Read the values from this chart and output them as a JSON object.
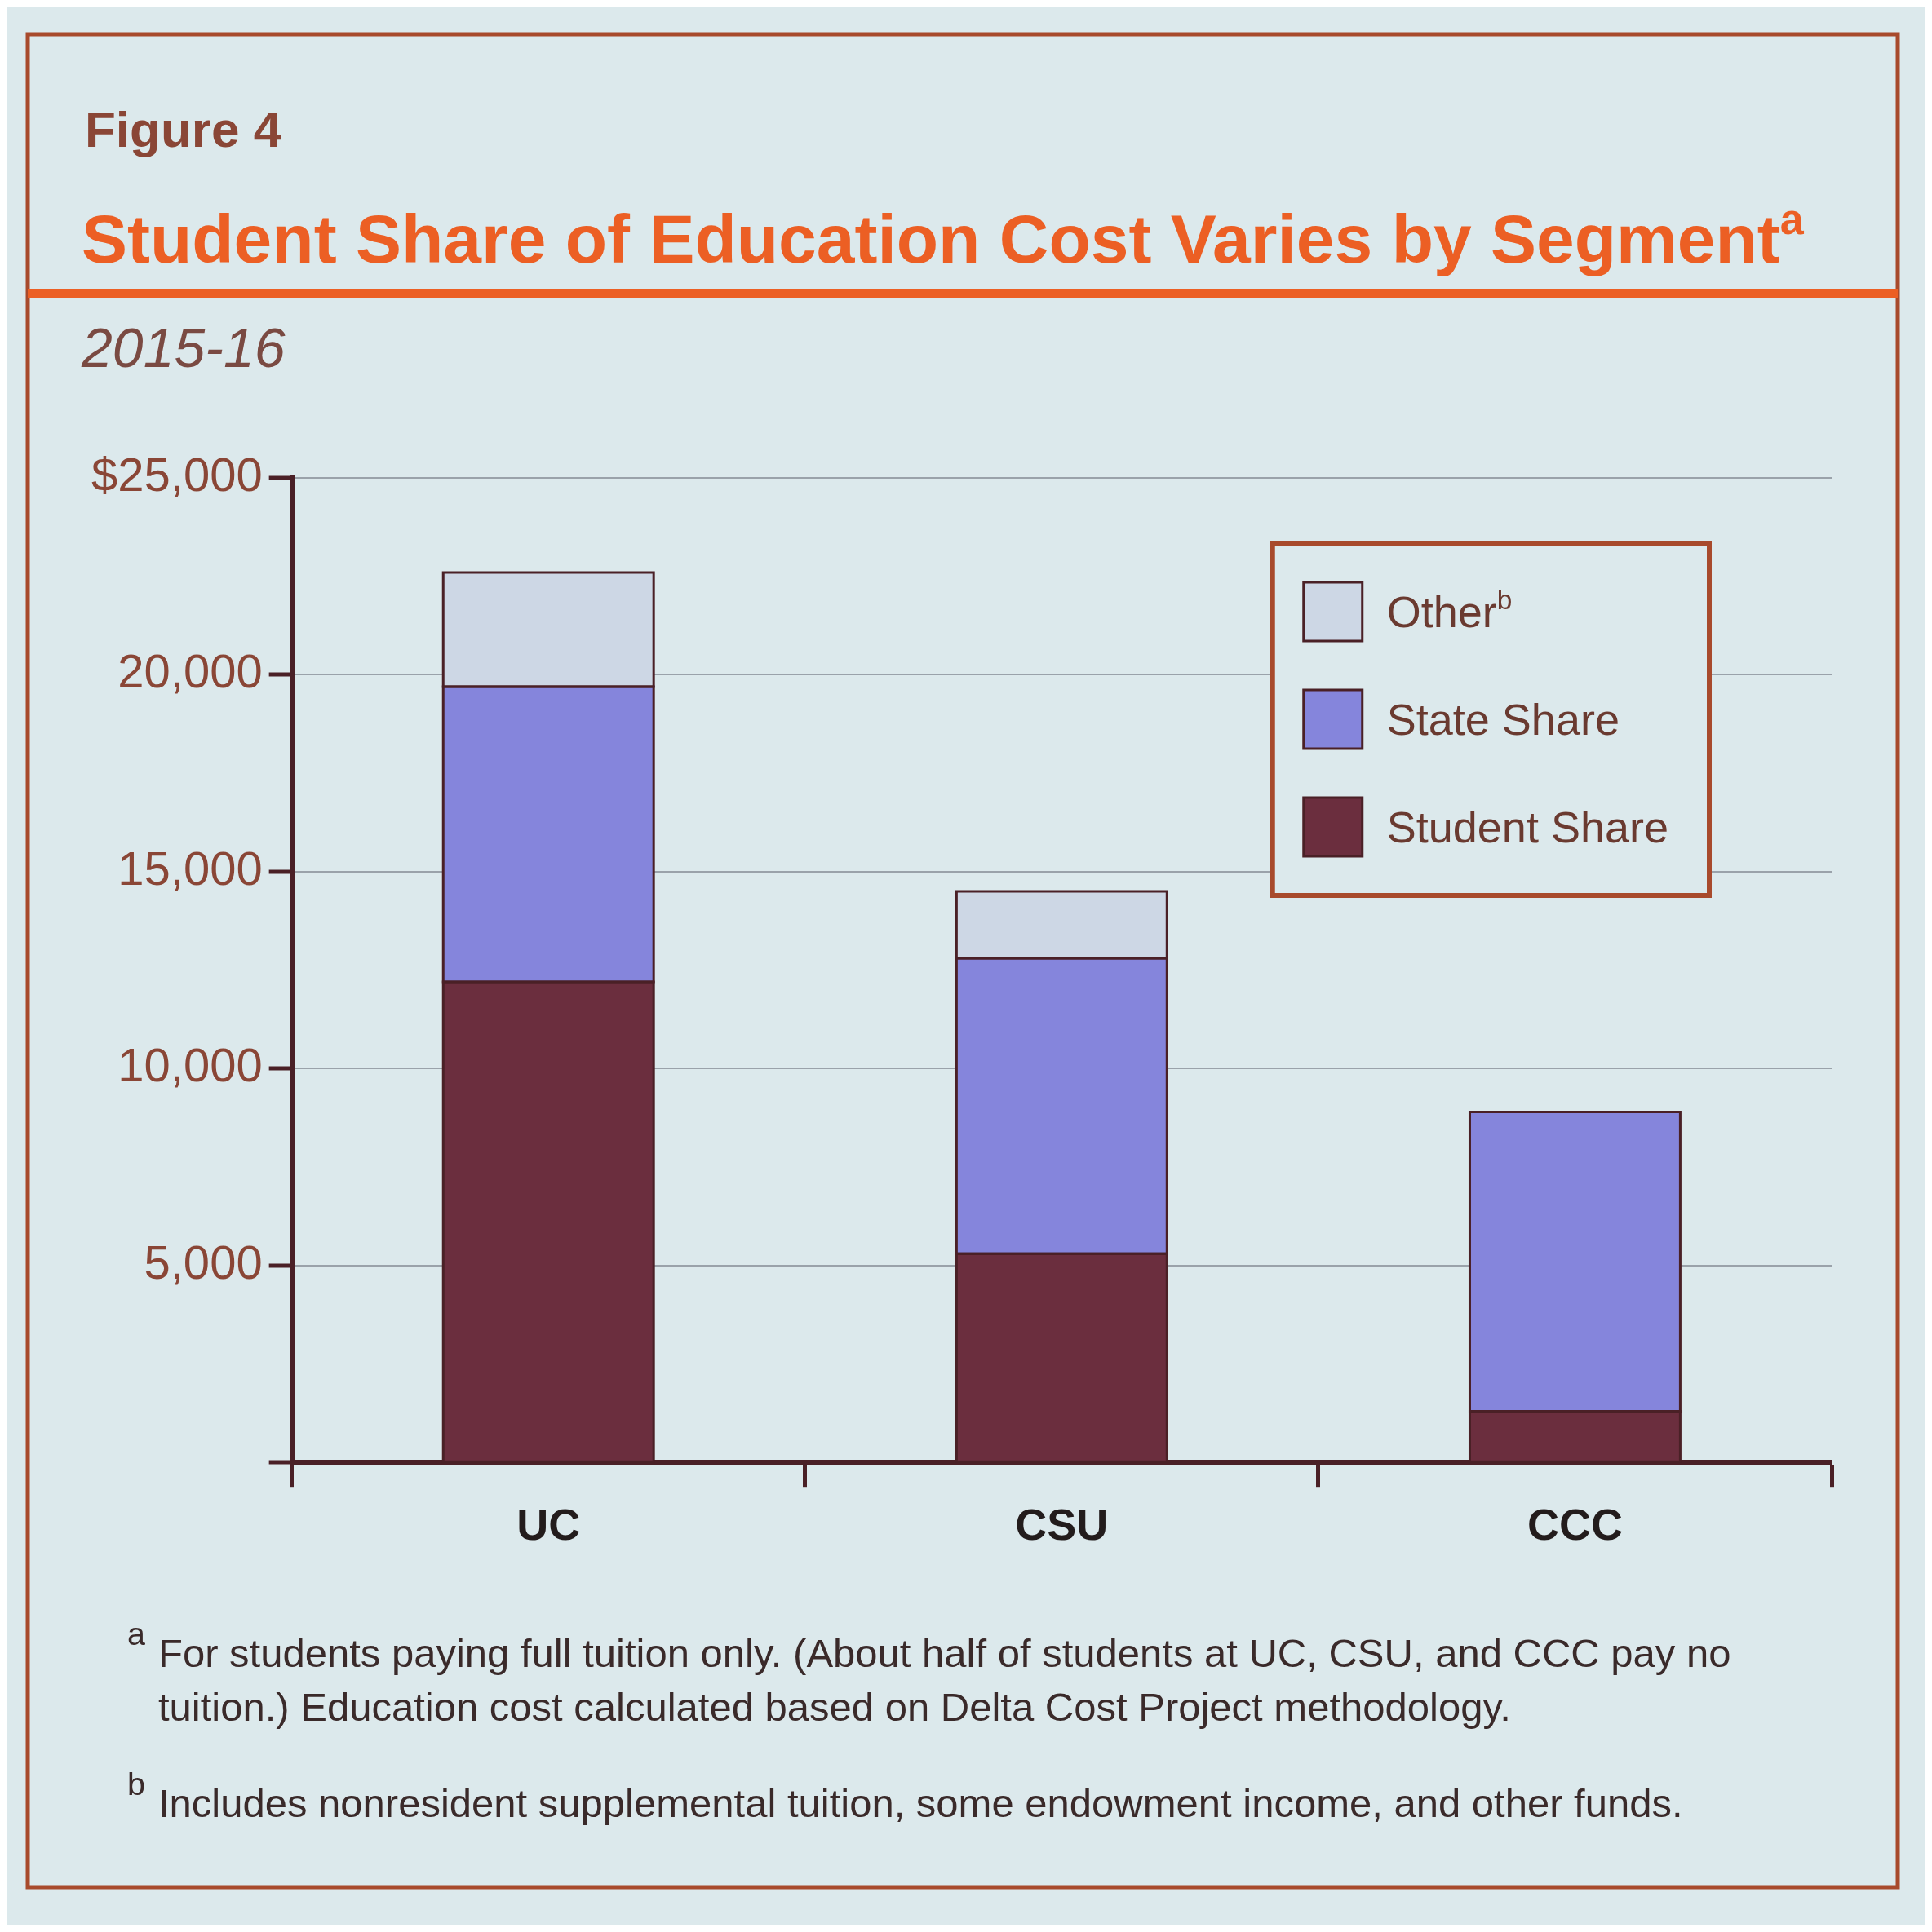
{
  "chart_data": {
    "type": "bar",
    "title": "Student Share of Education Cost Varies by Segment$^{a}$",
    "subtitle": "2015-16",
    "annotations": [
      "Figure 4",
      "$^{a}$ For students paying full tuition only. (About half of students at UC, CSU, and CCC pay no tuition.) Education cost calculated based on Delta Cost Project methodology.",
      "$^{b}$ Includes nonresident supplemental tuition, some endowment income, and other funds."
    ],
    "categories": [
      "UC",
      "CSU",
      "CCC"
    ],
    "series": [
      {
        "name": "Student Share",
        "color": "#6b2e3e",
        "values": [
          12200,
          5300,
          1300
        ]
      },
      {
        "name": "State Share",
        "color": "#8585dc",
        "values": [
          7500,
          7500,
          7600
        ]
      },
      {
        "name": "Other$^{b}$",
        "color": "#cdd7e5",
        "values": [
          2900,
          1700,
          0
        ]
      }
    ],
    "stacked": true,
    "ylim": [
      0,
      25000
    ],
    "yticks": [
      {
        "value": 0,
        "label": null
      },
      {
        "value": 5000,
        "label": "5,000"
      },
      {
        "value": 10000,
        "label": "10,000"
      },
      {
        "value": 15000,
        "label": "15,000"
      },
      {
        "value": 20000,
        "label": "20,000"
      },
      {
        "value": 25000,
        "label": "$25,000"
      }
    ],
    "grid": "y",
    "legend": "top right"
  }
}
